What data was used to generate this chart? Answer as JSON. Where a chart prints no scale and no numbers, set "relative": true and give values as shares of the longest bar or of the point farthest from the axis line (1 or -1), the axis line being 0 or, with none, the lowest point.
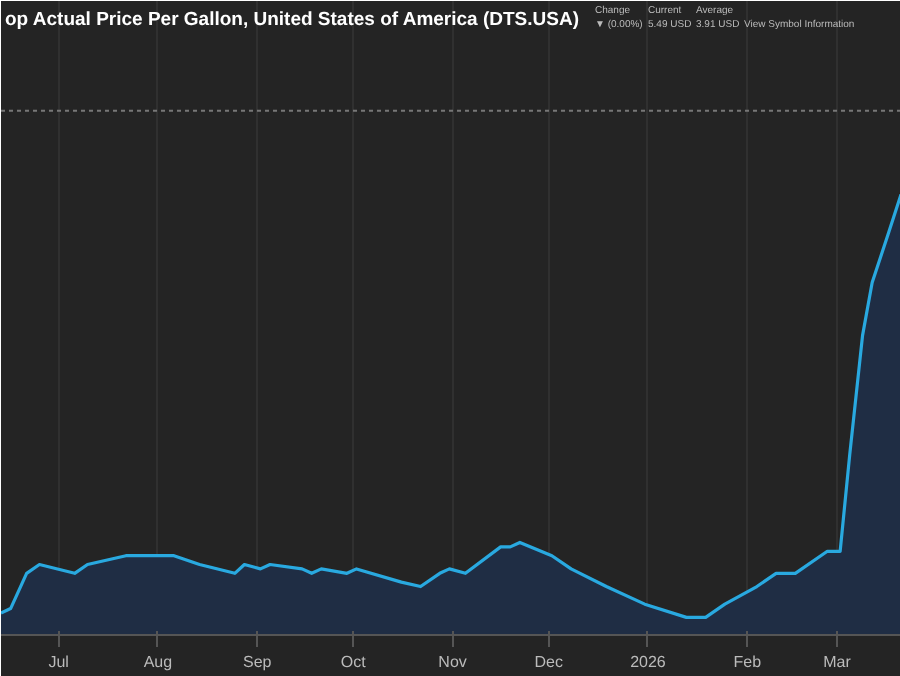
{
  "chart_data": {
    "type": "area",
    "title": "op Actual Price Per Gallon, United States of America (DTS.USA)",
    "annotations": [
      "Change\n▼ (0.00%)",
      "Current\n5.49 USD",
      "Average\n3.91 USD",
      "View Symbol Information"
    ],
    "relative": true,
    "x": [
      "2025-06-13",
      "2025-06-16",
      "2025-06-21",
      "2025-06-25",
      "2025-07-06",
      "2025-07-10",
      "2025-07-22",
      "2025-08-06",
      "2025-08-14",
      "2025-08-25",
      "2025-08-28",
      "2025-09-02",
      "2025-09-05",
      "2025-09-15",
      "2025-09-18",
      "2025-09-21",
      "2025-09-29",
      "2025-10-02",
      "2025-10-16",
      "2025-10-22",
      "2025-10-28",
      "2025-10-31",
      "2025-11-05",
      "2025-11-16",
      "2025-11-19",
      "2025-11-22",
      "2025-12-02",
      "2025-12-08",
      "2025-12-19",
      "2025-12-31",
      "2026-01-13",
      "2026-01-19",
      "2026-01-25",
      "2026-02-04",
      "2026-02-10",
      "2026-02-16",
      "2026-02-26",
      "2026-03-02",
      "2026-03-05",
      "2026-03-09",
      "2026-03-12",
      "2026-03-17",
      "2026-03-21"
    ],
    "series": [
      {
        "color": "#29a9e0",
        "values": [
          0.05,
          0.06,
          0.14,
          0.16,
          0.14,
          0.16,
          0.18,
          0.18,
          0.16,
          0.14,
          0.16,
          0.15,
          0.16,
          0.15,
          0.14,
          0.15,
          0.14,
          0.15,
          0.12,
          0.11,
          0.14,
          0.15,
          0.14,
          0.2,
          0.2,
          0.21,
          0.18,
          0.15,
          0.11,
          0.07,
          0.04,
          0.04,
          0.07,
          0.11,
          0.14,
          0.14,
          0.19,
          0.19,
          0.41,
          0.68,
          0.8,
          0.91,
          1
        ]
      }
    ],
    "xlim": [
      "2025-06-13",
      "2026-03-21"
    ],
    "xticks": [
      {
        "value": "2025-07-01",
        "label": "Jul"
      },
      {
        "value": "2025-08-01",
        "label": "Aug"
      },
      {
        "value": "2025-09-01",
        "label": "Sep"
      },
      {
        "value": "2025-10-01",
        "label": "Oct"
      },
      {
        "value": "2025-11-01",
        "label": "Nov"
      },
      {
        "value": "2025-12-01",
        "label": "Dec"
      },
      {
        "value": "2026-01-01",
        "label": "2026"
      },
      {
        "value": "2026-02-01",
        "label": "Feb"
      },
      {
        "value": "2026-03-01",
        "label": "Mar"
      }
    ],
    "ref_lines": [
      {
        "axis": "y",
        "value": 1.19,
        "color": "#777777",
        "line_style": "dotted"
      }
    ],
    "grid": "x"
  }
}
